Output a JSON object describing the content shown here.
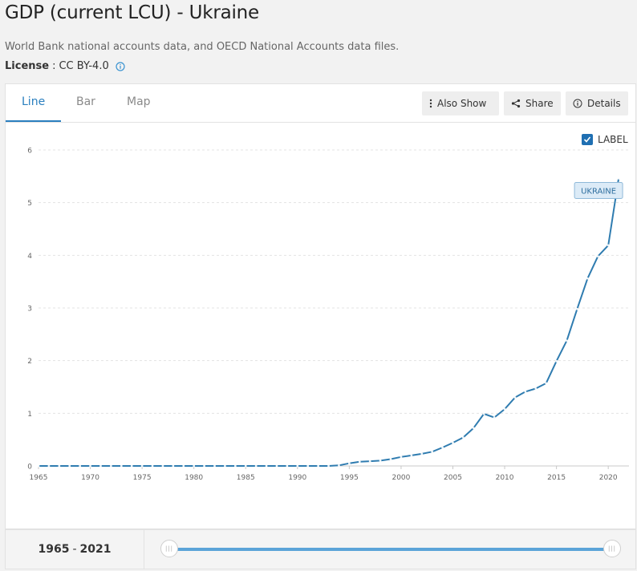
{
  "header": {
    "title": "GDP (current LCU) - Ukraine",
    "source": "World Bank national accounts data, and OECD National Accounts data files.",
    "license_label": "License",
    "license_value": "CC BY-4.0",
    "info_icon": "info-circle-icon"
  },
  "tabs": [
    {
      "label": "Line",
      "active": true
    },
    {
      "label": "Bar",
      "active": false
    },
    {
      "label": "Map",
      "active": false
    }
  ],
  "toolbar": {
    "also_show": "Also Show",
    "share": "Share",
    "details": "Details"
  },
  "label_toggle": {
    "label": "LABEL",
    "checked": true
  },
  "range": {
    "start": "1965",
    "end": "2021"
  },
  "colors": {
    "accent": "#2a7fbf",
    "line": "#2f7cb0",
    "track": "#5ba4d8"
  },
  "chart_data": {
    "type": "line",
    "title": "",
    "xlabel": "",
    "ylabel": "",
    "xlim": [
      1965,
      2022
    ],
    "ylim": [
      0,
      6
    ],
    "x_ticks": [
      1965,
      1970,
      1975,
      1980,
      1985,
      1990,
      1995,
      2000,
      2005,
      2010,
      2015,
      2020
    ],
    "y_ticks": [
      0,
      1,
      2,
      3,
      4,
      5,
      6
    ],
    "grid": true,
    "series": [
      {
        "name": "UKRAINE",
        "x": [
          1965,
          1966,
          1967,
          1968,
          1969,
          1970,
          1971,
          1972,
          1973,
          1974,
          1975,
          1976,
          1977,
          1978,
          1979,
          1980,
          1981,
          1982,
          1983,
          1984,
          1985,
          1986,
          1987,
          1988,
          1989,
          1990,
          1991,
          1992,
          1993,
          1994,
          1995,
          1996,
          1997,
          1998,
          1999,
          2000,
          2001,
          2002,
          2003,
          2004,
          2005,
          2006,
          2007,
          2008,
          2009,
          2010,
          2011,
          2012,
          2013,
          2014,
          2015,
          2016,
          2017,
          2018,
          2019,
          2020,
          2021
        ],
        "values": [
          0,
          0,
          0,
          0,
          0,
          0,
          0,
          0,
          0,
          0,
          0,
          0,
          0,
          0,
          0,
          0,
          0,
          0,
          0,
          0,
          0,
          0,
          0,
          0,
          0,
          0,
          0,
          0,
          0,
          0.01,
          0.05,
          0.08,
          0.09,
          0.1,
          0.13,
          0.17,
          0.2,
          0.23,
          0.27,
          0.35,
          0.44,
          0.54,
          0.72,
          0.99,
          0.92,
          1.08,
          1.3,
          1.41,
          1.47,
          1.57,
          1.99,
          2.38,
          2.98,
          3.56,
          3.98,
          4.19,
          5.46
        ]
      }
    ]
  }
}
